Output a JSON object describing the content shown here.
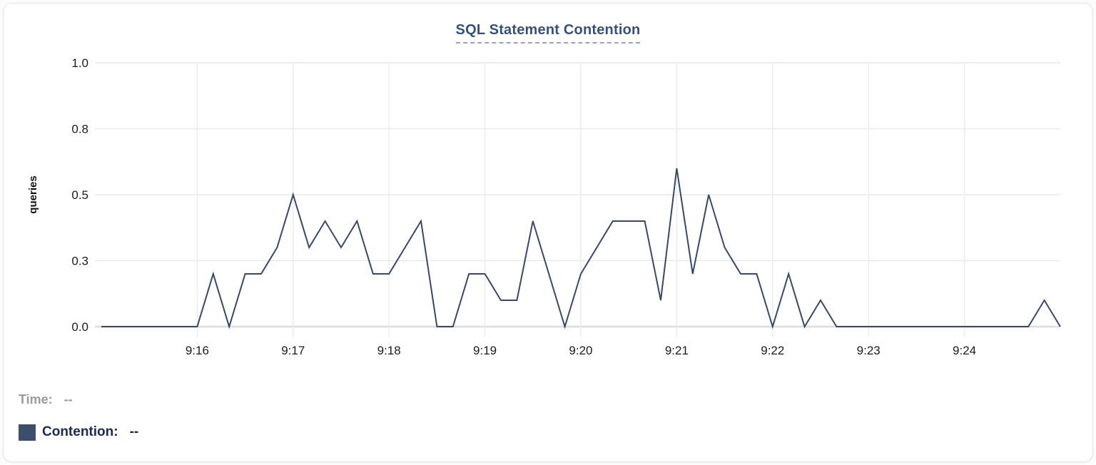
{
  "chart_data": {
    "type": "line",
    "title": "SQL Statement Contention",
    "ylabel": "queries",
    "ylim": [
      0,
      1
    ],
    "grid": true,
    "x_domain": {
      "start_seconds": -4,
      "end_seconds": 600,
      "start_label": "9:15",
      "end_label": "9:25"
    },
    "x_ticks": [
      {
        "seconds": 60,
        "label": "9:16"
      },
      {
        "seconds": 120,
        "label": "9:17"
      },
      {
        "seconds": 180,
        "label": "9:18"
      },
      {
        "seconds": 240,
        "label": "9:19"
      },
      {
        "seconds": 300,
        "label": "9:20"
      },
      {
        "seconds": 360,
        "label": "9:21"
      },
      {
        "seconds": 420,
        "label": "9:22"
      },
      {
        "seconds": 480,
        "label": "9:23"
      },
      {
        "seconds": 540,
        "label": "9:24"
      }
    ],
    "y_ticks": [
      {
        "value": 0.0,
        "label": "0.0"
      },
      {
        "value": 0.25,
        "label": "0.3"
      },
      {
        "value": 0.5,
        "label": "0.5"
      },
      {
        "value": 0.75,
        "label": "0.8"
      },
      {
        "value": 1.0,
        "label": "1.0"
      }
    ],
    "series": [
      {
        "name": "Contention",
        "color": "#36486b",
        "start_time": "9:15:00",
        "start_seconds": 0,
        "interval_seconds": 10,
        "values": [
          0,
          0,
          0,
          0,
          0,
          0,
          0,
          0.2,
          0,
          0.2,
          0.2,
          0.3,
          0.5,
          0.3,
          0.4,
          0.3,
          0.4,
          0.2,
          0.2,
          0.3,
          0.4,
          0,
          0,
          0.2,
          0.2,
          0.1,
          0.1,
          0.4,
          0.2,
          0,
          0.2,
          0.3,
          0.4,
          0.4,
          0.4,
          0.1,
          0.6,
          0.2,
          0.5,
          0.3,
          0.2,
          0.2,
          0,
          0.2,
          0,
          0.1,
          0,
          0,
          0,
          0,
          0,
          0,
          0,
          0,
          0,
          0,
          0,
          0,
          0,
          0.1,
          0
        ]
      }
    ]
  },
  "legend": {
    "time_label": "Time:",
    "time_value": "--",
    "series_label": "Contention:",
    "series_value": "--",
    "swatch_color": "#3d4e6c"
  },
  "colors": {
    "title": "#33527e",
    "title_underline": "#9aa3c5",
    "h_grid": "#e9e9e9",
    "v_grid": "#ececec",
    "baseline": "#e0e0e0",
    "tick_label": "#1c1c1c",
    "axis_title": "#111111"
  }
}
